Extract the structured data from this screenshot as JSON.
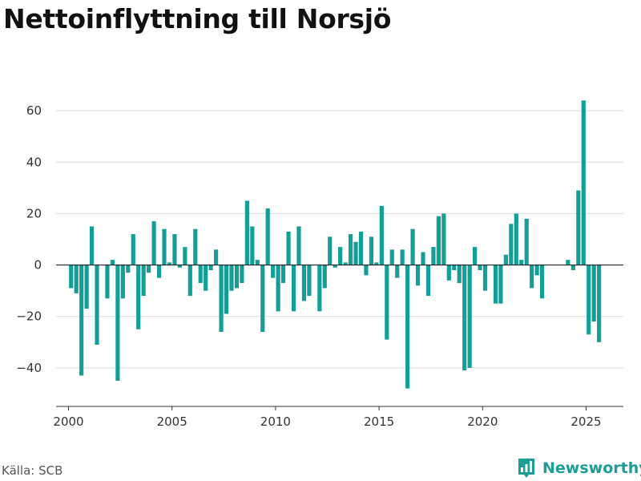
{
  "chart_data": {
    "type": "bar",
    "title": "Nettoinflyttning till Norsjö",
    "xlabel": "",
    "ylabel": "",
    "color": "#139e97",
    "xlim": [
      1999.4,
      2026.8
    ],
    "ylim": [
      -55,
      75
    ],
    "yticks": [
      -40,
      -20,
      0,
      20,
      40,
      60
    ],
    "ytick_labels": [
      "−40",
      "−20",
      "0",
      "20",
      "40",
      "60"
    ],
    "xticks": [
      2000,
      2005,
      2010,
      2015,
      2020,
      2025
    ],
    "xtick_labels": [
      "2000",
      "2005",
      "2010",
      "2015",
      "2020",
      "2025"
    ],
    "grid": true,
    "x_start": 2000.125,
    "x_step": 0.25,
    "values": [
      -9,
      -11,
      -43,
      -17,
      15,
      -31,
      0,
      -13,
      2,
      -45,
      -13,
      -3,
      12,
      -25,
      -12,
      -3,
      17,
      -5,
      14,
      1,
      12,
      -1,
      7,
      -12,
      14,
      -7,
      -10,
      -2,
      6,
      -26,
      -19,
      -10,
      -9,
      -7,
      25,
      15,
      2,
      -26,
      22,
      -5,
      -18,
      -7,
      13,
      -18,
      15,
      -14,
      -12,
      0,
      -18,
      -9,
      11,
      -1,
      7,
      1,
      12,
      9,
      13,
      -4,
      11,
      1,
      23,
      -29,
      6,
      -5,
      6,
      -48,
      14,
      -8,
      5,
      -12,
      7,
      19,
      20,
      -6,
      -2,
      -7,
      -41,
      -40,
      7,
      -2,
      -10,
      0,
      -15,
      -15,
      4,
      16,
      20,
      2,
      18,
      -9,
      -4,
      -13,
      0,
      0,
      0,
      0,
      2,
      -2,
      29,
      64,
      -27,
      -22,
      -30
    ]
  },
  "footer": {
    "source": "Källa: SCB",
    "brand": "Newsworthy"
  }
}
